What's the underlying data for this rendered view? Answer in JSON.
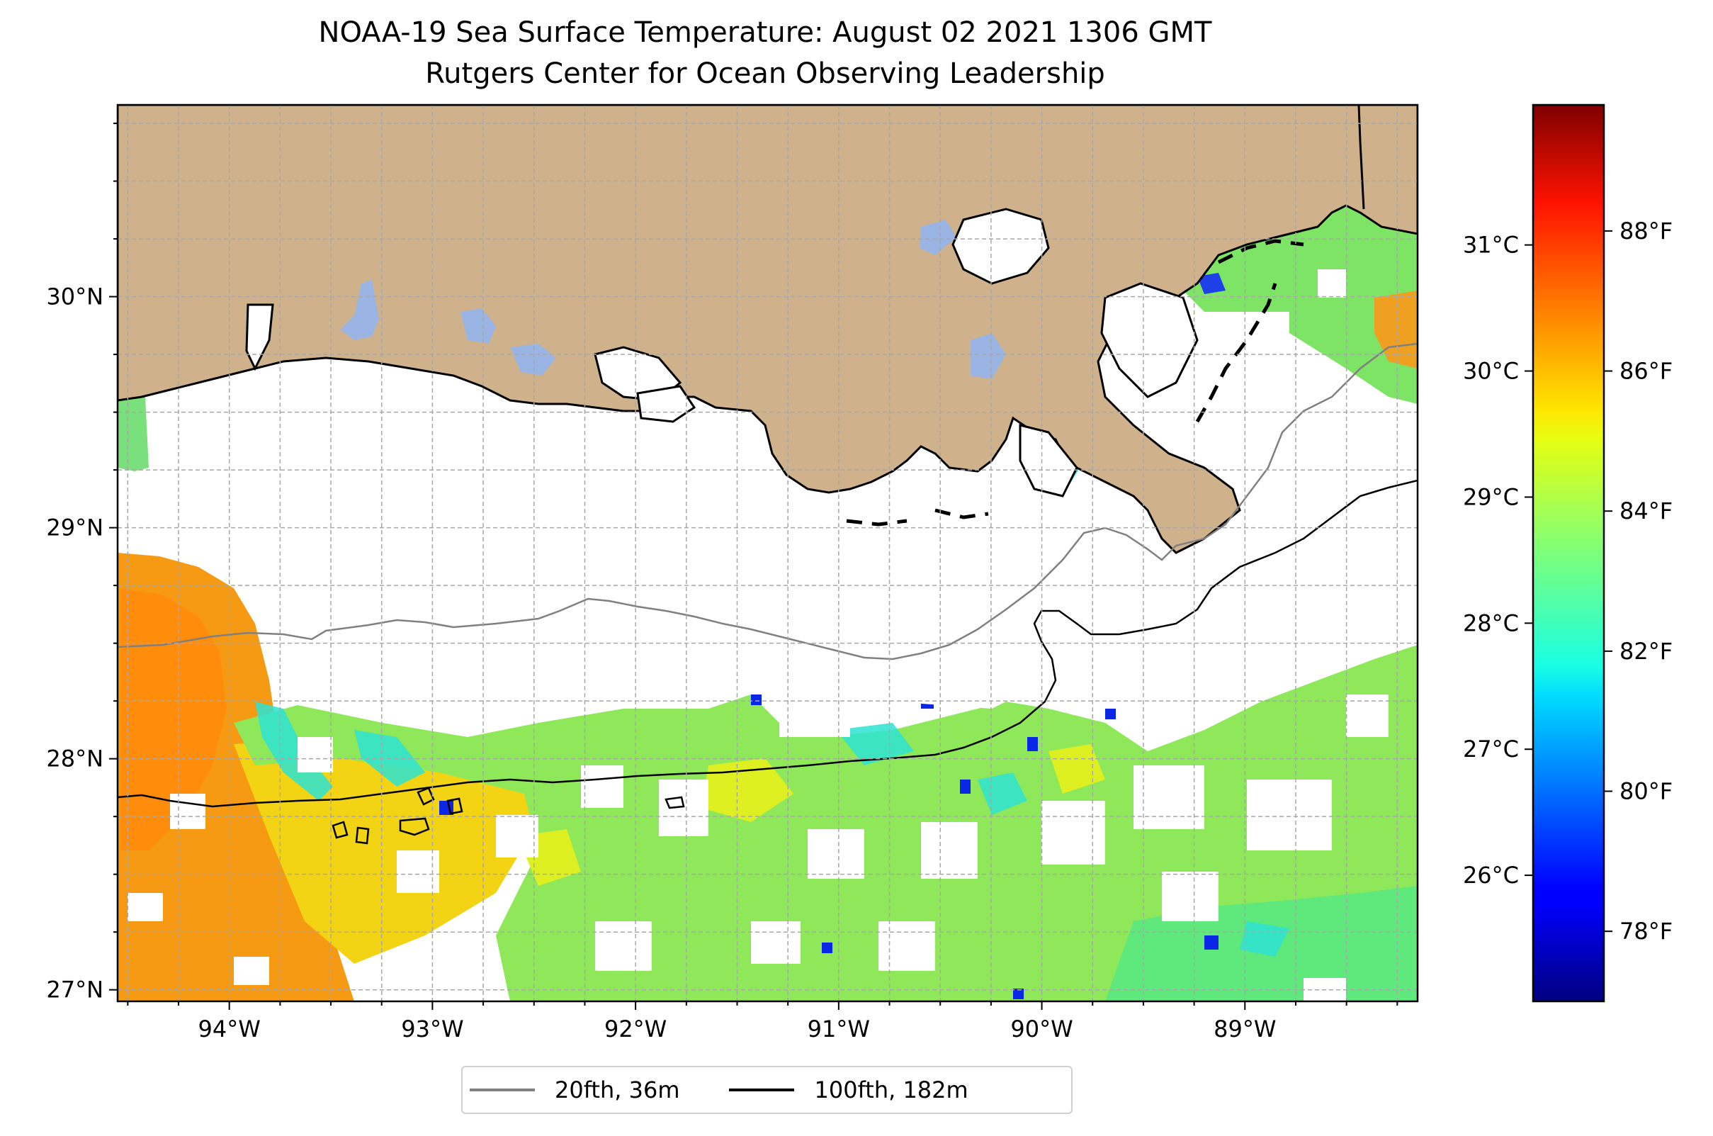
{
  "title": {
    "line1": "NOAA-19 Sea Surface Temperature: August 02 2021 1306 GMT",
    "line2": "Rutgers Center for Ocean Observing Leadership"
  },
  "map": {
    "lon_range": [
      -94.55,
      -88.15
    ],
    "lat_range": [
      26.95,
      30.83
    ],
    "land_color": "#cfb28b",
    "lake_color": "#9ab5e3",
    "gridlines": true,
    "lon_ticks": [
      {
        "lon": -94,
        "label": "94°W"
      },
      {
        "lon": -93,
        "label": "93°W"
      },
      {
        "lon": -92,
        "label": "92°W"
      },
      {
        "lon": -91,
        "label": "91°W"
      },
      {
        "lon": -90,
        "label": "90°W"
      },
      {
        "lon": -89,
        "label": "89°W"
      }
    ],
    "lat_ticks": [
      {
        "lat": 30,
        "label": "30°N"
      },
      {
        "lat": 29,
        "label": "29°N"
      },
      {
        "lat": 28,
        "label": "28°N"
      },
      {
        "lat": 27,
        "label": "27°N"
      }
    ]
  },
  "colorbar": {
    "colormap": "jet",
    "range_f": [
      77.0,
      89.8
    ],
    "celsius_ticks": [
      {
        "c": 31,
        "label": "31°C"
      },
      {
        "c": 30,
        "label": "30°C"
      },
      {
        "c": 29,
        "label": "29°C"
      },
      {
        "c": 28,
        "label": "28°C"
      },
      {
        "c": 27,
        "label": "27°C"
      },
      {
        "c": 26,
        "label": "26°C"
      }
    ],
    "fahrenheit_ticks": [
      {
        "f": 88,
        "label": "88°F"
      },
      {
        "f": 86,
        "label": "86°F"
      },
      {
        "f": 84,
        "label": "84°F"
      },
      {
        "f": 82,
        "label": "82°F"
      },
      {
        "f": 80,
        "label": "80°F"
      },
      {
        "f": 78,
        "label": "78°F"
      }
    ]
  },
  "legend": {
    "placement": "bottom-center",
    "items": [
      {
        "label": "20fth, 36m",
        "color": "#808080"
      },
      {
        "label": "100fth, 182m",
        "color": "#000000"
      }
    ]
  }
}
